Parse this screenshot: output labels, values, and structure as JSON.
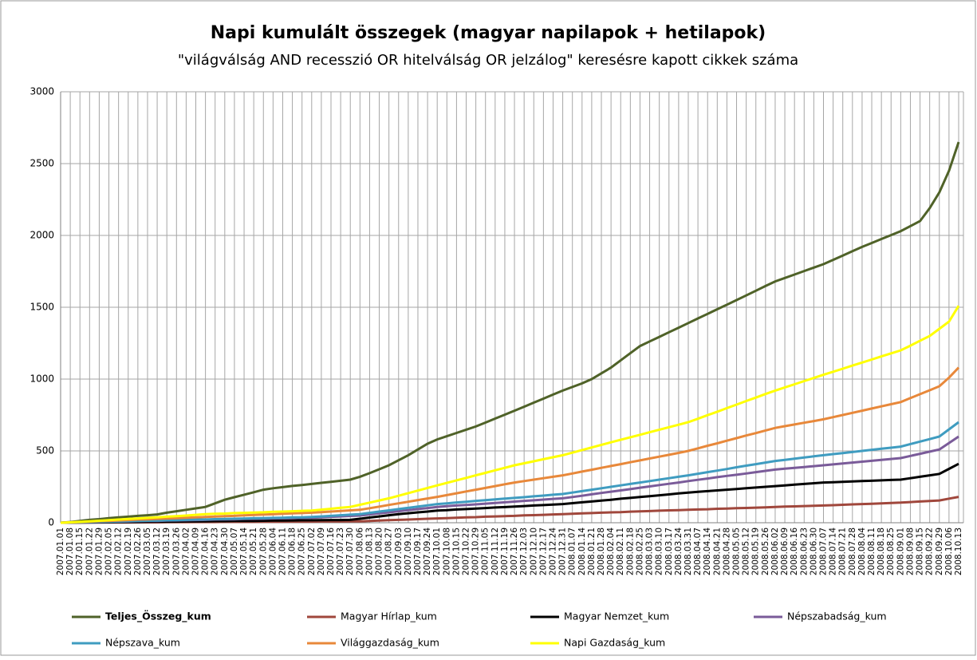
{
  "chart_data": {
    "type": "line",
    "title": "Napi kumulált összegek (magyar napilapok + hetilapok)",
    "subtitle": "\"világválság AND recesszió OR hitelválság OR jelzálog\" keresésre  kapott cikkek száma",
    "categories": [
      "2007.01.01",
      "2007.01.08",
      "2007.01.15",
      "2007.01.22",
      "2007.01.29",
      "2007.02.05",
      "2007.02.12",
      "2007.02.19",
      "2007.02.26",
      "2007.03.05",
      "2007.03.12",
      "2007.03.19",
      "2007.03.26",
      "2007.04.02",
      "2007.04.09",
      "2007.04.16",
      "2007.04.23",
      "2007.04.30",
      "2007.05.07",
      "2007.05.14",
      "2007.05.21",
      "2007.05.28",
      "2007.06.04",
      "2007.06.11",
      "2007.06.18",
      "2007.06.25",
      "2007.07.02",
      "2007.07.09",
      "2007.07.16",
      "2007.07.23",
      "2007.07.30",
      "2007.08.06",
      "2007.08.13",
      "2007.08.20",
      "2007.08.27",
      "2007.09.03",
      "2007.09.10",
      "2007.09.17",
      "2007.09.24",
      "2007.10.01",
      "2007.10.08",
      "2007.10.15",
      "2007.10.22",
      "2007.10.29",
      "2007.11.05",
      "2007.11.12",
      "2007.11.19",
      "2007.11.26",
      "2007.12.03",
      "2007.12.10",
      "2007.12.17",
      "2007.12.24",
      "2007.12.31",
      "2008.01.07",
      "2008.01.14",
      "2008.01.21",
      "2008.01.28",
      "2008.02.04",
      "2008.02.11",
      "2008.02.18",
      "2008.02.25",
      "2008.03.03",
      "2008.03.10",
      "2008.03.17",
      "2008.03.24",
      "2008.03.31",
      "2008.04.07",
      "2008.04.14",
      "2008.04.21",
      "2008.04.28",
      "2008.05.05",
      "2008.05.12",
      "2008.05.19",
      "2008.05.26",
      "2008.06.02",
      "2008.06.09",
      "2008.06.16",
      "2008.06.23",
      "2008.06.30",
      "2008.07.07",
      "2008.07.14",
      "2008.07.21",
      "2008.07.28",
      "2008.08.04",
      "2008.08.11",
      "2008.08.18",
      "2008.08.25",
      "2008.09.01",
      "2008.09.08",
      "2008.09.15",
      "2008.09.22",
      "2008.09.29",
      "2008.10.06",
      "2008.10.13"
    ],
    "series": [
      {
        "name": "Teljes_Összeg_kum",
        "color": "#4f6228",
        "values": [
          0,
          5,
          12,
          20,
          25,
          32,
          38,
          42,
          48,
          52,
          58,
          70,
          80,
          90,
          100,
          110,
          135,
          160,
          178,
          195,
          212,
          230,
          240,
          248,
          256,
          263,
          270,
          278,
          285,
          292,
          300,
          320,
          345,
          372,
          400,
          435,
          470,
          510,
          550,
          580,
          602,
          625,
          648,
          670,
          697,
          725,
          752,
          780,
          808,
          836,
          864,
          892,
          920,
          945,
          970,
          1000,
          1040,
          1080,
          1130,
          1180,
          1230,
          1262,
          1294,
          1326,
          1358,
          1390,
          1422,
          1454,
          1486,
          1518,
          1550,
          1582,
          1615,
          1648,
          1680,
          1704,
          1728,
          1752,
          1776,
          1800,
          1830,
          1860,
          1890,
          1920,
          1947,
          1975,
          2002,
          2030,
          2065,
          2100,
          2190,
          2300,
          2450,
          2650
        ]
      },
      {
        "name": "Magyar Hírlap_kum",
        "color": "#a0473c",
        "values": [
          0,
          0,
          1,
          1,
          1,
          2,
          2,
          2,
          3,
          3,
          3,
          4,
          4,
          4,
          5,
          5,
          5,
          6,
          6,
          6,
          6,
          7,
          7,
          7,
          8,
          8,
          8,
          9,
          9,
          9,
          10,
          10,
          12,
          15,
          18,
          20,
          22,
          25,
          28,
          30,
          32,
          35,
          37,
          39,
          42,
          44,
          46,
          48,
          51,
          53,
          55,
          58,
          60,
          62,
          65,
          67,
          70,
          72,
          74,
          77,
          79,
          81,
          84,
          86,
          88,
          90,
          92,
          94,
          97,
          99,
          101,
          103,
          105,
          107,
          110,
          112,
          114,
          116,
          118,
          120,
          122,
          125,
          128,
          130,
          132,
          135,
          138,
          140,
          144,
          148,
          151,
          155,
          168,
          180
        ]
      },
      {
        "name": "Magyar Nemzet_kum",
        "color": "#000000",
        "values": [
          0,
          1,
          1,
          2,
          3,
          3,
          4,
          5,
          5,
          6,
          7,
          7,
          8,
          9,
          9,
          10,
          11,
          11,
          12,
          13,
          13,
          14,
          15,
          15,
          16,
          17,
          17,
          18,
          19,
          19,
          20,
          28,
          36,
          44,
          52,
          60,
          66,
          72,
          78,
          85,
          88,
          92,
          95,
          99,
          102,
          106,
          109,
          112,
          116,
          120,
          123,
          126,
          130,
          136,
          142,
          148,
          154,
          160,
          167,
          173,
          179,
          185,
          191,
          197,
          204,
          210,
          215,
          220,
          225,
          230,
          235,
          240,
          245,
          250,
          255,
          260,
          265,
          270,
          275,
          280,
          282,
          285,
          288,
          290,
          292,
          295,
          298,
          300,
          310,
          320,
          330,
          340,
          375,
          410
        ]
      },
      {
        "name": "Népszabadság_kum",
        "color": "#7a5b99",
        "values": [
          0,
          1,
          3,
          4,
          5,
          7,
          8,
          9,
          11,
          12,
          13,
          15,
          16,
          17,
          19,
          20,
          22,
          23,
          24,
          26,
          27,
          28,
          30,
          31,
          32,
          34,
          35,
          38,
          41,
          44,
          47,
          50,
          58,
          65,
          72,
          80,
          88,
          95,
          102,
          110,
          115,
          120,
          124,
          128,
          133,
          138,
          142,
          147,
          152,
          156,
          161,
          166,
          170,
          179,
          188,
          198,
          207,
          216,
          225,
          234,
          244,
          253,
          262,
          271,
          280,
          290,
          299,
          308,
          317,
          326,
          334,
          343,
          352,
          361,
          370,
          376,
          382,
          388,
          394,
          400,
          406,
          412,
          419,
          425,
          431,
          438,
          444,
          450,
          465,
          480,
          495,
          510,
          555,
          600
        ]
      },
      {
        "name": "Népszava_kum",
        "color": "#3f9cc0",
        "values": [
          0,
          2,
          3,
          5,
          6,
          8,
          9,
          11,
          12,
          14,
          15,
          17,
          18,
          20,
          22,
          23,
          25,
          26,
          28,
          29,
          31,
          32,
          34,
          35,
          37,
          38,
          40,
          44,
          48,
          52,
          56,
          60,
          69,
          78,
          86,
          95,
          104,
          112,
          121,
          130,
          135,
          141,
          146,
          152,
          157,
          162,
          168,
          173,
          178,
          184,
          189,
          195,
          200,
          210,
          220,
          230,
          240,
          250,
          260,
          270,
          280,
          290,
          300,
          310,
          320,
          330,
          341,
          352,
          363,
          374,
          386,
          397,
          408,
          419,
          430,
          438,
          446,
          454,
          462,
          470,
          478,
          485,
          492,
          500,
          508,
          515,
          522,
          530,
          548,
          565,
          582,
          600,
          650,
          700
        ]
      },
      {
        "name": "Világgazdaság_kum",
        "color": "#e8883a",
        "values": [
          0,
          3,
          5,
          8,
          11,
          13,
          16,
          19,
          22,
          24,
          27,
          30,
          32,
          35,
          38,
          40,
          43,
          46,
          48,
          51,
          54,
          57,
          59,
          62,
          65,
          67,
          70,
          74,
          78,
          82,
          86,
          90,
          101,
          112,
          124,
          135,
          146,
          158,
          169,
          180,
          192,
          205,
          218,
          230,
          242,
          255,
          268,
          280,
          290,
          300,
          310,
          320,
          330,
          343,
          356,
          369,
          382,
          395,
          408,
          421,
          434,
          447,
          460,
          473,
          486,
          500,
          518,
          536,
          553,
          571,
          589,
          607,
          624,
          642,
          660,
          672,
          684,
          696,
          708,
          720,
          735,
          750,
          765,
          780,
          795,
          810,
          825,
          840,
          868,
          895,
          922,
          950,
          1010,
          1080
        ]
      },
      {
        "name": "Napi Gazdaság_kum",
        "color": "#ffff00",
        "values": [
          0,
          3,
          6,
          10,
          14,
          18,
          22,
          26,
          30,
          34,
          38,
          42,
          46,
          50,
          55,
          60,
          62,
          64,
          67,
          69,
          71,
          73,
          76,
          78,
          80,
          83,
          85,
          91,
          97,
          104,
          110,
          125,
          140,
          155,
          170,
          188,
          206,
          224,
          242,
          260,
          277,
          295,
          312,
          330,
          347,
          365,
          382,
          400,
          414,
          428,
          442,
          456,
          470,
          488,
          506,
          524,
          542,
          560,
          577,
          595,
          612,
          630,
          648,
          665,
          682,
          700,
          724,
          749,
          773,
          798,
          822,
          847,
          871,
          896,
          920,
          942,
          964,
          986,
          1008,
          1030,
          1051,
          1072,
          1094,
          1115,
          1136,
          1158,
          1179,
          1200,
          1233,
          1267,
          1300,
          1350,
          1400,
          1510
        ]
      }
    ],
    "ylim": [
      0,
      3000
    ],
    "yticks": [
      0,
      500,
      1000,
      1500,
      2000,
      2500,
      3000
    ],
    "grid": true
  }
}
